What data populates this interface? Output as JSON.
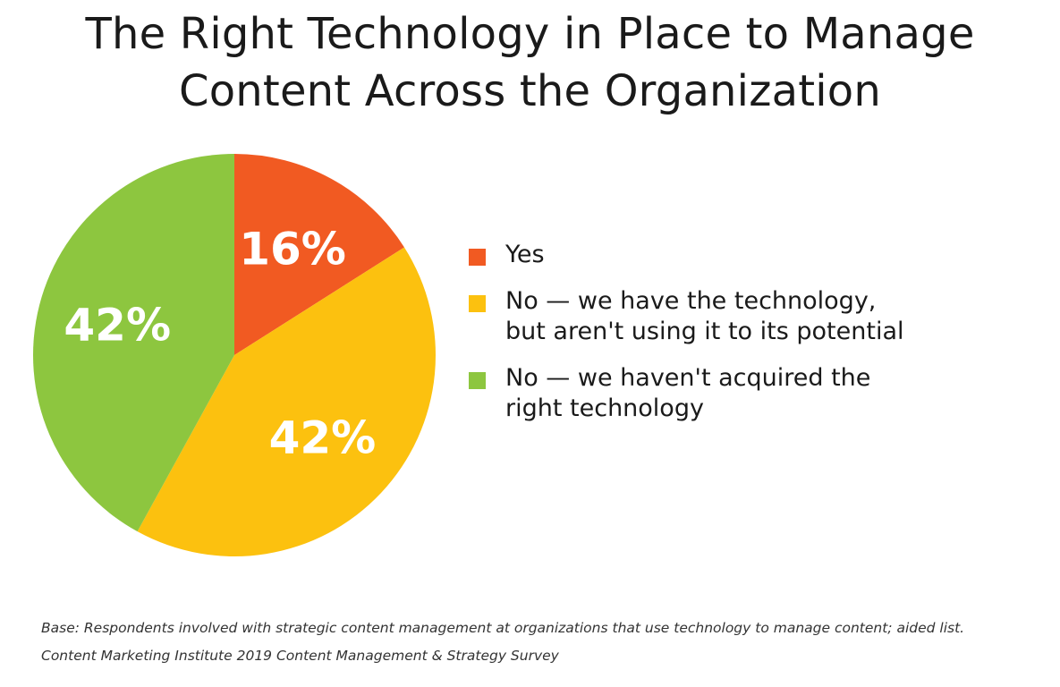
{
  "chart_data": {
    "type": "pie",
    "title_lines": [
      "The Right Technology in Place to Manage",
      "Content Across the Organization"
    ],
    "start_angle_deg": 0,
    "direction": "clockwise",
    "slices": [
      {
        "label": "Yes",
        "value": 16,
        "display": "16%",
        "color": "#f15a22",
        "legend_lines": [
          "Yes"
        ]
      },
      {
        "label": "No — we have the technology, but aren't using it to its potential",
        "value": 42,
        "display": "42%",
        "color": "#fcc10f",
        "legend_lines": [
          "No — we have the technology,",
          "but aren't using it to its potential"
        ]
      },
      {
        "label": "No — we haven't acquired the right technology",
        "value": 42,
        "display": "42%",
        "color": "#8dc63f",
        "legend_lines": [
          "No — we haven't acquired the",
          "right technology"
        ]
      }
    ],
    "legend_position": "right",
    "label_color": "#ffffff"
  },
  "footnote": {
    "lines": [
      "Base: Respondents involved with strategic content management at organizations that use technology to manage content; aided list.",
      "Content Marketing Institute 2019 Content Management & Strategy Survey"
    ]
  }
}
